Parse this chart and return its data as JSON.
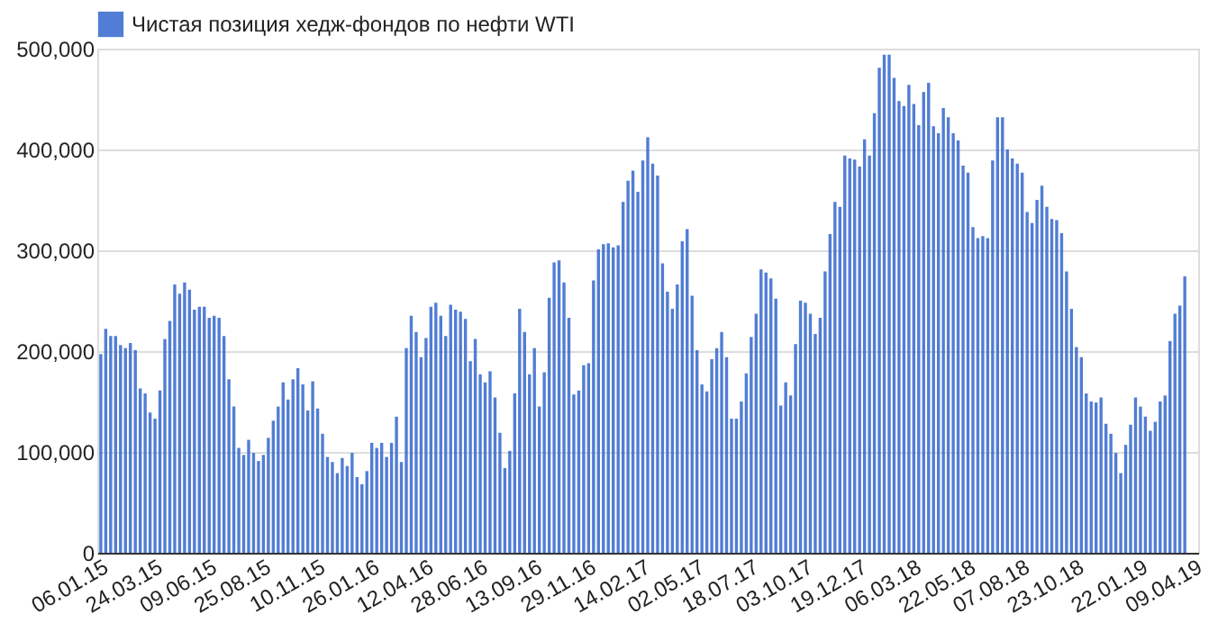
{
  "chart_data": {
    "type": "bar",
    "x": [
      "2015-01-06",
      "2015-01-13",
      "2015-01-20",
      "2015-01-27",
      "2015-02-03",
      "2015-02-10",
      "2015-02-17",
      "2015-02-24",
      "2015-03-03",
      "2015-03-10",
      "2015-03-17",
      "2015-03-24",
      "2015-03-31",
      "2015-04-07",
      "2015-04-14",
      "2015-04-21",
      "2015-04-28",
      "2015-05-05",
      "2015-05-12",
      "2015-05-19",
      "2015-05-26",
      "2015-06-02",
      "2015-06-09",
      "2015-06-16",
      "2015-06-23",
      "2015-06-30",
      "2015-07-07",
      "2015-07-14",
      "2015-07-21",
      "2015-07-28",
      "2015-08-04",
      "2015-08-11",
      "2015-08-18",
      "2015-08-25",
      "2015-09-01",
      "2015-09-08",
      "2015-09-15",
      "2015-09-22",
      "2015-09-29",
      "2015-10-06",
      "2015-10-13",
      "2015-10-20",
      "2015-10-27",
      "2015-11-03",
      "2015-11-10",
      "2015-11-17",
      "2015-11-24",
      "2015-12-01",
      "2015-12-08",
      "2015-12-15",
      "2015-12-22",
      "2015-12-29",
      "2016-01-05",
      "2016-01-12",
      "2016-01-19",
      "2016-01-26",
      "2016-02-02",
      "2016-02-09",
      "2016-02-16",
      "2016-02-23",
      "2016-03-01",
      "2016-03-08",
      "2016-03-15",
      "2016-03-22",
      "2016-03-29",
      "2016-04-05",
      "2016-04-12",
      "2016-04-19",
      "2016-04-26",
      "2016-05-03",
      "2016-05-10",
      "2016-05-17",
      "2016-05-24",
      "2016-05-31",
      "2016-06-07",
      "2016-06-14",
      "2016-06-21",
      "2016-06-28",
      "2016-07-05",
      "2016-07-12",
      "2016-07-19",
      "2016-07-26",
      "2016-08-02",
      "2016-08-09",
      "2016-08-16",
      "2016-08-23",
      "2016-08-30",
      "2016-09-06",
      "2016-09-13",
      "2016-09-20",
      "2016-09-27",
      "2016-10-04",
      "2016-10-11",
      "2016-10-18",
      "2016-10-25",
      "2016-11-01",
      "2016-11-08",
      "2016-11-15",
      "2016-11-22",
      "2016-11-29",
      "2016-12-06",
      "2016-12-13",
      "2016-12-20",
      "2016-12-27",
      "2017-01-03",
      "2017-01-10",
      "2017-01-17",
      "2017-01-24",
      "2017-01-31",
      "2017-02-07",
      "2017-02-14",
      "2017-02-21",
      "2017-02-28",
      "2017-03-07",
      "2017-03-14",
      "2017-03-21",
      "2017-03-28",
      "2017-04-04",
      "2017-04-11",
      "2017-04-18",
      "2017-04-25",
      "2017-05-02",
      "2017-05-09",
      "2017-05-16",
      "2017-05-23",
      "2017-05-30",
      "2017-06-06",
      "2017-06-13",
      "2017-06-20",
      "2017-06-27",
      "2017-07-04",
      "2017-07-11",
      "2017-07-18",
      "2017-07-25",
      "2017-08-01",
      "2017-08-08",
      "2017-08-15",
      "2017-08-22",
      "2017-08-29",
      "2017-09-05",
      "2017-09-12",
      "2017-09-19",
      "2017-09-26",
      "2017-10-03",
      "2017-10-10",
      "2017-10-17",
      "2017-10-24",
      "2017-10-31",
      "2017-11-07",
      "2017-11-14",
      "2017-11-21",
      "2017-11-28",
      "2017-12-05",
      "2017-12-12",
      "2017-12-19",
      "2017-12-26",
      "2018-01-02",
      "2018-01-09",
      "2018-01-16",
      "2018-01-23",
      "2018-01-30",
      "2018-02-06",
      "2018-02-13",
      "2018-02-20",
      "2018-02-27",
      "2018-03-06",
      "2018-03-13",
      "2018-03-20",
      "2018-03-27",
      "2018-04-03",
      "2018-04-10",
      "2018-04-17",
      "2018-04-24",
      "2018-05-01",
      "2018-05-08",
      "2018-05-15",
      "2018-05-22",
      "2018-05-29",
      "2018-06-05",
      "2018-06-12",
      "2018-06-19",
      "2018-06-26",
      "2018-07-03",
      "2018-07-10",
      "2018-07-17",
      "2018-07-24",
      "2018-07-31",
      "2018-08-07",
      "2018-08-14",
      "2018-08-21",
      "2018-08-28",
      "2018-09-04",
      "2018-09-11",
      "2018-09-18",
      "2018-09-25",
      "2018-10-02",
      "2018-10-09",
      "2018-10-16",
      "2018-10-23",
      "2018-10-30",
      "2018-11-06",
      "2018-11-13",
      "2018-11-20",
      "2018-11-27",
      "2018-12-04",
      "2018-12-11",
      "2018-12-18",
      "2018-12-25",
      "2019-01-01",
      "2019-01-08",
      "2019-01-15",
      "2019-01-22",
      "2019-01-29",
      "2019-02-05",
      "2019-02-12",
      "2019-02-19",
      "2019-02-26",
      "2019-03-05",
      "2019-03-12",
      "2019-03-19",
      "2019-03-26"
    ],
    "series": [
      {
        "name": "Чистая позиция хедж-фондов по нефти WTI",
        "color": "#3366cc",
        "values": [
          197000,
          222000,
          215000,
          215000,
          206000,
          203000,
          208000,
          201000,
          163000,
          158000,
          139000,
          133000,
          161000,
          212000,
          230000,
          266000,
          257000,
          268000,
          261000,
          241000,
          244000,
          244000,
          233000,
          235000,
          233000,
          215000,
          172000,
          145000,
          104000,
          97000,
          112000,
          99000,
          91000,
          97000,
          114000,
          131000,
          145000,
          169000,
          152000,
          172000,
          183000,
          167000,
          141000,
          170000,
          143000,
          118000,
          95000,
          90000,
          79000,
          94000,
          86000,
          99000,
          75000,
          68000,
          81000,
          109000,
          104000,
          109000,
          95000,
          109000,
          135000,
          90000,
          203000,
          235000,
          219000,
          194000,
          213000,
          244000,
          248000,
          235000,
          215000,
          246000,
          241000,
          239000,
          232000,
          190000,
          212000,
          177000,
          169000,
          180000,
          154000,
          119000,
          84000,
          101000,
          158000,
          242000,
          219000,
          177000,
          203000,
          145000,
          179000,
          253000,
          288000,
          290000,
          268000,
          233000,
          157000,
          161000,
          186000,
          188000,
          270000,
          301000,
          306000,
          307000,
          303000,
          305000,
          348000,
          369000,
          379000,
          358000,
          389000,
          412000,
          386000,
          374000,
          287000,
          259000,
          242000,
          266000,
          309000,
          321000,
          255000,
          201000,
          167000,
          160000,
          192000,
          203000,
          219000,
          194000,
          133000,
          133000,
          150000,
          178000,
          214000,
          237000,
          281000,
          278000,
          272000,
          252000,
          146000,
          169000,
          156000,
          207000,
          250000,
          248000,
          237000,
          217000,
          233000,
          279000,
          316000,
          348000,
          343000,
          394000,
          391000,
          390000,
          383000,
          410000,
          394000,
          436000,
          481000,
          494000,
          494000,
          471000,
          448000,
          443000,
          464000,
          445000,
          424000,
          457000,
          466000,
          423000,
          416000,
          441000,
          432000,
          416000,
          409000,
          384000,
          377000,
          323000,
          312000,
          314000,
          312000,
          389000,
          432000,
          432000,
          400000,
          391000,
          386000,
          377000,
          338000,
          327000,
          350000,
          364000,
          343000,
          331000,
          330000,
          317000,
          279000,
          242000,
          204000,
          194000,
          158000,
          150000,
          149000,
          154000,
          128000,
          118000,
          99000,
          79000,
          107000,
          127000,
          154000,
          145000,
          135000,
          121000,
          130000,
          150000,
          156000,
          210000,
          237000,
          245000,
          274000
        ]
      }
    ],
    "xlim": [
      "2015-01-01",
      "2019-04-14"
    ],
    "xticks": [
      {
        "value": "2015-01-06",
        "label": "06.01.15"
      },
      {
        "value": "2015-03-24",
        "label": "24.03.15"
      },
      {
        "value": "2015-06-09",
        "label": "09.06.15"
      },
      {
        "value": "2015-08-25",
        "label": "25.08.15"
      },
      {
        "value": "2015-11-10",
        "label": "10.11.15"
      },
      {
        "value": "2016-01-26",
        "label": "26.01.16"
      },
      {
        "value": "2016-04-12",
        "label": "12.04.16"
      },
      {
        "value": "2016-06-28",
        "label": "28.06.16"
      },
      {
        "value": "2016-09-13",
        "label": "13.09.16"
      },
      {
        "value": "2016-11-29",
        "label": "29.11.16"
      },
      {
        "value": "2017-02-14",
        "label": "14.02.17"
      },
      {
        "value": "2017-05-02",
        "label": "02.05.17"
      },
      {
        "value": "2017-07-18",
        "label": "18.07.17"
      },
      {
        "value": "2017-10-03",
        "label": "03.10.17"
      },
      {
        "value": "2017-12-19",
        "label": "19.12.17"
      },
      {
        "value": "2018-03-06",
        "label": "06.03.18"
      },
      {
        "value": "2018-05-22",
        "label": "22.05.18"
      },
      {
        "value": "2018-08-07",
        "label": "07.08.18"
      },
      {
        "value": "2018-10-23",
        "label": "23.10.18"
      },
      {
        "value": "2019-01-22",
        "label": "22.01.19"
      },
      {
        "value": "2019-04-09",
        "label": "09.04.19"
      }
    ],
    "ylim": [
      0,
      500000
    ],
    "yticks": [
      0,
      {
        "value": 100000,
        "label": "100,000"
      },
      {
        "value": 200000,
        "label": "200,000"
      },
      {
        "value": 300000,
        "label": "300,000"
      },
      {
        "value": 400000,
        "label": "400,000"
      },
      {
        "value": 500000,
        "label": "500,000"
      }
    ],
    "grid": "y",
    "legend": "top left"
  }
}
